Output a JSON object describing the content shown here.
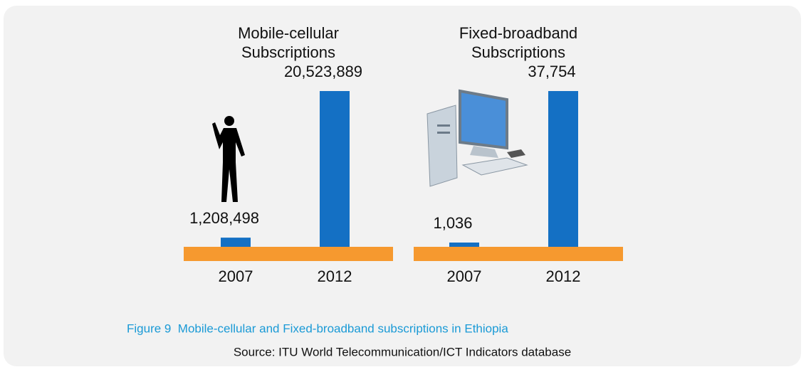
{
  "chart_data": [
    {
      "type": "bar",
      "title": [
        "Mobile-cellular",
        "Subscriptions"
      ],
      "categories": [
        "2007",
        "2012"
      ],
      "values": [
        1208498,
        20523889
      ],
      "value_labels": [
        "1,208,498",
        "20,523,889"
      ],
      "color": "#1470c4",
      "base_color": "#f6992f"
    },
    {
      "type": "bar",
      "title": [
        "Fixed-broadband",
        "Subscriptions"
      ],
      "categories": [
        "2007",
        "2012"
      ],
      "values": [
        1036,
        37754
      ],
      "value_labels": [
        "1,036",
        "37,754"
      ],
      "color": "#1470c4",
      "base_color": "#f6992f"
    }
  ],
  "caption": "Figure 9  Mobile-cellular and Fixed-broadband subscriptions in Ethiopia",
  "source": "Source: ITU World Telecommunication/ICT Indicators database"
}
